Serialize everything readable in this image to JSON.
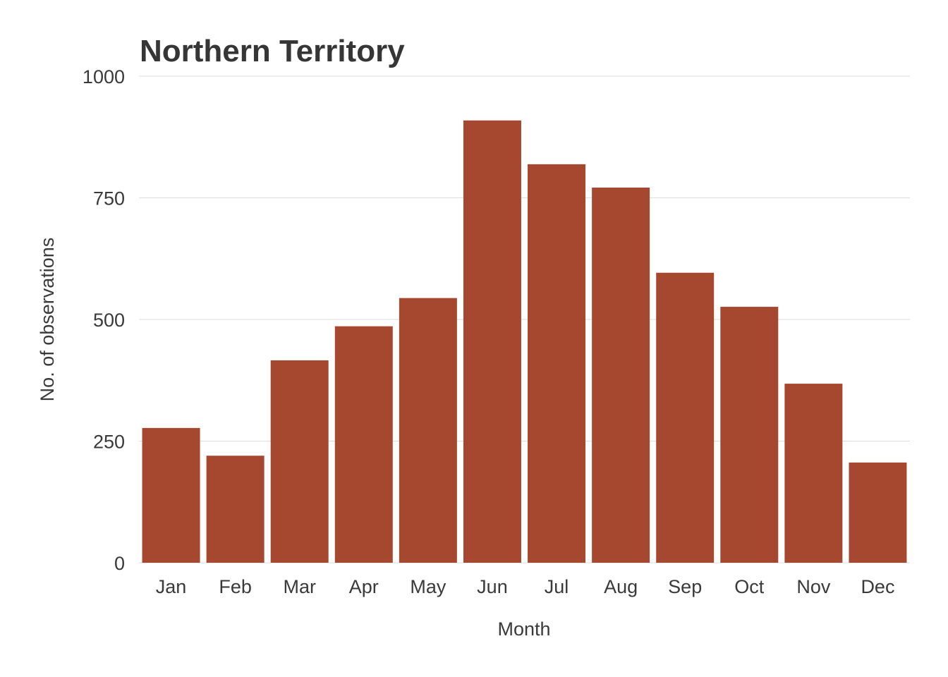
{
  "chart_data": {
    "type": "bar",
    "title": "Northern Territory",
    "xlabel": "Month",
    "ylabel": "No. of observations",
    "categories": [
      "Jan",
      "Feb",
      "Mar",
      "Apr",
      "May",
      "Jun",
      "Jul",
      "Aug",
      "Sep",
      "Oct",
      "Nov",
      "Dec"
    ],
    "values": [
      277,
      220,
      416,
      486,
      544,
      909,
      819,
      771,
      596,
      526,
      368,
      206
    ],
    "ylim": [
      0,
      1000
    ],
    "yticks": [
      "0",
      "250",
      "500",
      "750",
      "1000"
    ],
    "grid": true,
    "legend": "none",
    "bar_color": "#a6472f"
  }
}
